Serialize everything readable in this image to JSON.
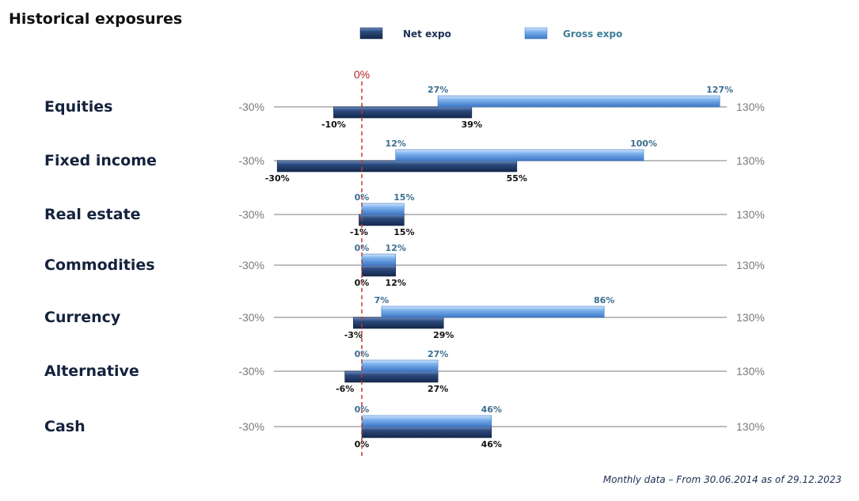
{
  "chart_data": {
    "type": "bar",
    "title": "Historical exposures",
    "zero_label": "0%",
    "footnote": "Monthly data – From 30.06.2014 as of 29.12.2023",
    "axis_min_label": "-30%",
    "axis_max_label": "130%",
    "xlim": [
      -30,
      130
    ],
    "legend": {
      "position": "top",
      "net_label": "Net expo",
      "gross_label": "Gross expo"
    },
    "colors": {
      "net": "#1f3a66",
      "gross": "#5b97e0",
      "zero_line": "#c0392b",
      "axis_line": "#bdbdbd"
    },
    "categories": [
      "Equities",
      "Fixed income",
      "Real estate",
      "Commodities",
      "Currency",
      "Alternative",
      "Cash"
    ],
    "series": [
      {
        "name": "Net expo",
        "ranges": [
          [
            -10,
            39
          ],
          [
            -30,
            55
          ],
          [
            -1,
            15
          ],
          [
            0,
            12
          ],
          [
            -3,
            29
          ],
          [
            -6,
            27
          ],
          [
            0,
            46
          ]
        ],
        "min_labels": [
          "-10%",
          "-30%",
          "-1%",
          "0%",
          "-3%",
          "-6%",
          "0%"
        ],
        "max_labels": [
          "39%",
          "55%",
          "15%",
          "12%",
          "29%",
          "27%",
          "46%"
        ]
      },
      {
        "name": "Gross expo",
        "ranges": [
          [
            27,
            127
          ],
          [
            12,
            100
          ],
          [
            0,
            15
          ],
          [
            0,
            12
          ],
          [
            7,
            86
          ],
          [
            0,
            27
          ],
          [
            0,
            46
          ]
        ],
        "min_labels": [
          "27%",
          "12%",
          "0%",
          "0%",
          "7%",
          "0%",
          "0%"
        ],
        "max_labels": [
          "127%",
          "100%",
          "15%",
          "12%",
          "86%",
          "27%",
          "46%"
        ]
      }
    ]
  }
}
